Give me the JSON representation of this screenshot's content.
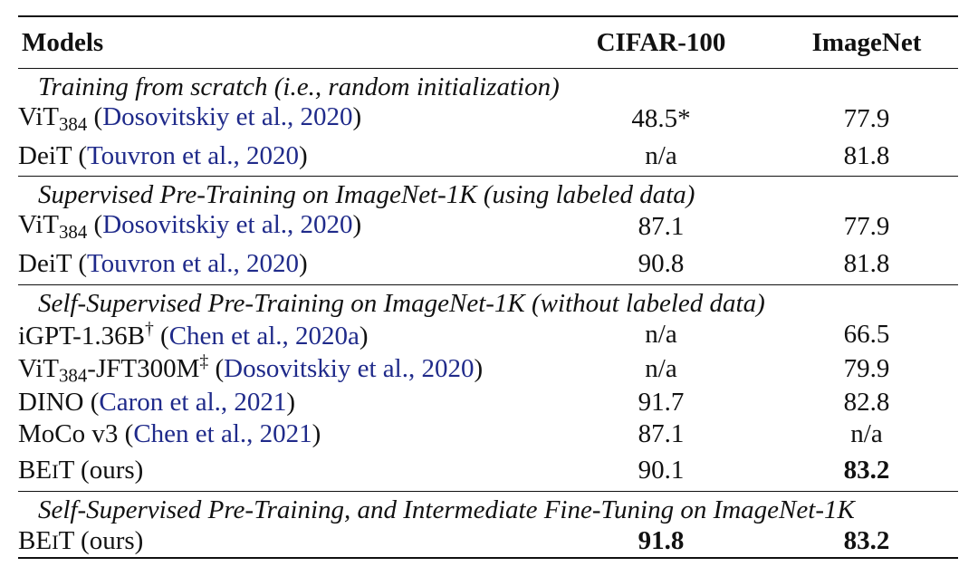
{
  "header": {
    "col1": "Models",
    "col2": "CIFAR-100",
    "col3": "ImageNet"
  },
  "groups": [
    {
      "title": "Training from scratch (i.e., random initialization)",
      "rows": [
        {
          "name": "ViT",
          "sub": "384",
          "cite": "Dosovitskiy et al., 2020",
          "cifar": "48.5*",
          "imagenet": "77.9"
        },
        {
          "name": "DeiT",
          "cite": "Touvron et al., 2020",
          "cifar": "n/a",
          "imagenet": "81.8"
        }
      ]
    },
    {
      "title": "Supervised Pre-Training on ImageNet-1K (using labeled data)",
      "rows": [
        {
          "name": "ViT",
          "sub": "384",
          "cite": "Dosovitskiy et al., 2020",
          "cifar": "87.1",
          "imagenet": "77.9"
        },
        {
          "name": "DeiT",
          "cite": "Touvron et al., 2020",
          "cifar": "90.8",
          "imagenet": "81.8"
        }
      ]
    },
    {
      "title": "Self-Supervised Pre-Training on ImageNet-1K (without labeled data)",
      "rows": [
        {
          "name": "iGPT-1.36B",
          "sup": "†",
          "cite": "Chen et al., 2020a",
          "cifar": "n/a",
          "imagenet": "66.5"
        },
        {
          "name": "ViT",
          "sub": "384",
          "suffix": "-JFT300M",
          "sup": "‡",
          "cite": "Dosovitskiy et al., 2020",
          "cifar": "n/a",
          "imagenet": "79.9"
        },
        {
          "name": "DINO",
          "cite": "Caron et al., 2021",
          "cifar": "91.7",
          "imagenet": "82.8"
        },
        {
          "name": "MoCo v3",
          "cite": "Chen et al., 2021",
          "cifar": "87.1",
          "imagenet": "n/a"
        },
        {
          "name": "BE",
          "sc": "I",
          "suffix": "T (ours)",
          "cifar": "90.1",
          "imagenet": "83.2"
        }
      ]
    },
    {
      "title": "Self-Supervised Pre-Training, and Intermediate Fine-Tuning on ImageNet-1K",
      "rows": [
        {
          "name": "BE",
          "sc": "I",
          "suffix": "T (ours)",
          "cifar": "91.8",
          "imagenet": "83.2"
        }
      ]
    }
  ],
  "bold_cells": {
    "g2r4_imagenet": true,
    "g3r0_cifar": true,
    "g3r0_imagenet": true
  }
}
